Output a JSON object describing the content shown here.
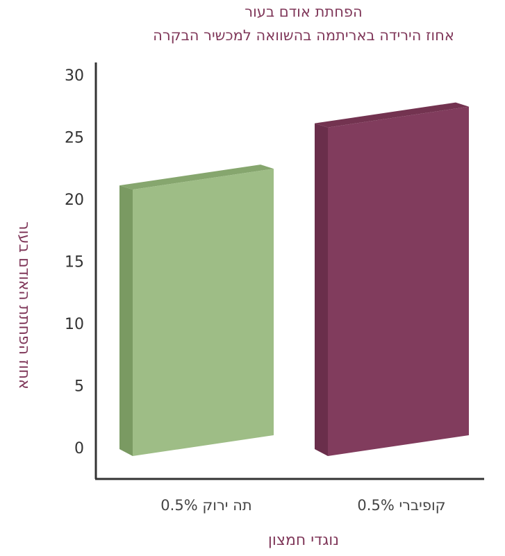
{
  "chart_data": {
    "type": "bar",
    "title": "הפחתת אודם בעור",
    "subtitle": "אחוז הירידה באריתמה בהשוואה למכשיר הבקרה",
    "xlabel": "נוגדי חמצון",
    "ylabel": "אחוז הפחתת האודם בעור",
    "categories": [
      "0.5% תה ירוק",
      "0.5% קופיברי"
    ],
    "values": [
      21,
      26
    ],
    "ylim": [
      0,
      30
    ],
    "yticks": [
      "0",
      "5",
      "10",
      "15",
      "20",
      "25",
      "30"
    ],
    "grid": false,
    "legend": "none",
    "colors": {
      "bars_front": [
        "#9ebd86",
        "#813c5d"
      ],
      "bars_side": [
        "#7a9a62",
        "#6a2e4b"
      ],
      "bars_top": [
        "#86a66e",
        "#733350"
      ],
      "axis": "#333333",
      "title": "#80385a"
    }
  }
}
